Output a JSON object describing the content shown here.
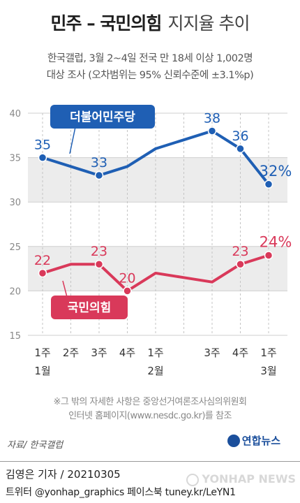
{
  "title": {
    "main": "민주 – 국민의힘",
    "sub": "지지율 추이"
  },
  "survey": {
    "line1": "한국갤럽, 3월 2~4일 전국 만 18세 이상 1,002명",
    "line2": "대상 조사 (오차범위는 95% 신뢰수준에 ±3.1%p)"
  },
  "chart_data": {
    "type": "line",
    "ylim": [
      15,
      40
    ],
    "yticks": [
      15,
      20,
      25,
      30,
      35,
      40
    ],
    "grid": true,
    "x_labels": [
      {
        "week": "1주",
        "month": "1월"
      },
      {
        "week": "2주",
        "month": ""
      },
      {
        "week": "3주",
        "month": ""
      },
      {
        "week": "4주",
        "month": ""
      },
      {
        "week": "1주",
        "month": "2월"
      },
      {
        "week": "",
        "month": ""
      },
      {
        "week": "3주",
        "month": ""
      },
      {
        "week": "4주",
        "month": ""
      },
      {
        "week": "1주",
        "month": "3월"
      }
    ],
    "series": [
      {
        "name": "더불어민주당",
        "color": "#1f5fb4",
        "values": [
          35,
          34,
          33,
          34,
          36,
          37,
          38,
          36,
          32
        ],
        "labels": [
          "35",
          "",
          "33",
          "",
          "",
          "",
          "38",
          "36",
          "32%"
        ]
      },
      {
        "name": "국민의힘",
        "color": "#d9395a",
        "values": [
          22,
          23,
          23,
          20,
          22,
          21.5,
          21,
          23,
          24
        ],
        "labels": [
          "22",
          "",
          "23",
          "20",
          "",
          "",
          "",
          "23",
          "24%"
        ]
      }
    ]
  },
  "note": {
    "line1": "※그 밖의 자세한 사항은 중앙선거여론조사심의위원회",
    "line2": "인터넷 홈페이지(www.nesdc.go.kr)를 참조"
  },
  "source": "자료/ 한국갤럽",
  "brand": "연합뉴스",
  "byline": "김영은 기자 / 20210305",
  "social": "트위터 @yonhap_graphics  페이스북 tuney.kr/LeYN1",
  "watermark": "YONHAP NEWS"
}
